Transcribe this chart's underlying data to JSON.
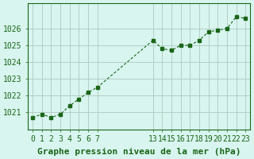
{
  "x": [
    0,
    1,
    2,
    3,
    4,
    5,
    6,
    7,
    13,
    14,
    15,
    16,
    17,
    18,
    19,
    20,
    21,
    22,
    23
  ],
  "y": [
    1020.7,
    1020.9,
    1020.7,
    1020.9,
    1021.4,
    1021.8,
    1022.2,
    1022.5,
    1025.3,
    1024.8,
    1024.7,
    1025.0,
    1025.0,
    1025.3,
    1025.8,
    1025.9,
    1026.0,
    1026.7,
    1026.6
  ],
  "xticks": [
    0,
    1,
    2,
    3,
    4,
    5,
    6,
    7,
    13,
    14,
    15,
    16,
    17,
    18,
    19,
    20,
    21,
    22,
    23
  ],
  "xlim": [
    -0.5,
    23.5
  ],
  "ylim": [
    1020.0,
    1027.5
  ],
  "yticks": [
    1021,
    1022,
    1023,
    1024,
    1025,
    1026
  ],
  "line_color": "#1a6618",
  "marker": "s",
  "marker_size": 3,
  "bg_color": "#d8f5ef",
  "grid_color": "#b0c8c0",
  "xlabel": "Graphe pression niveau de la mer (hPa)",
  "xlabel_color": "#1a6618",
  "xlabel_fontsize": 8,
  "tick_color": "#1a6618",
  "tick_fontsize": 7,
  "ytick_fontsize": 7,
  "spine_color": "#1a6618"
}
